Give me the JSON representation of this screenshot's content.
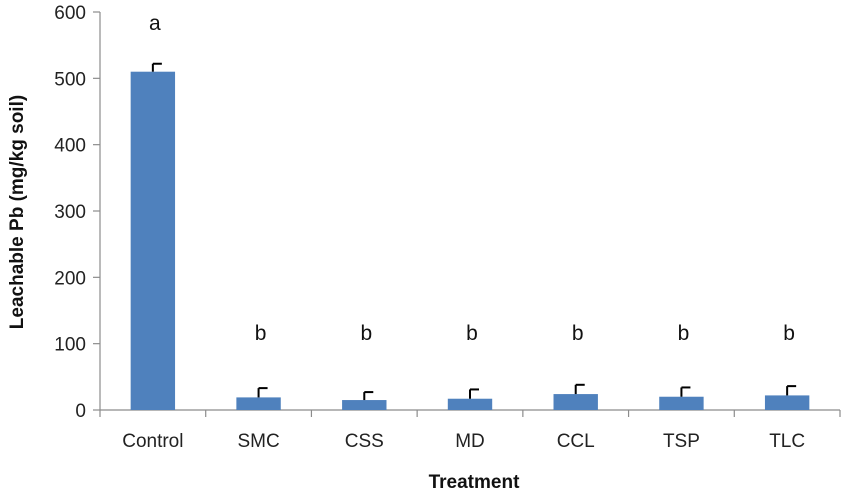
{
  "chart_data": {
    "type": "bar",
    "title": "",
    "xlabel": "Treatment",
    "ylabel": "Leachable Pb (mg/kg soil)",
    "ylim": [
      0,
      600
    ],
    "yticks": [
      0,
      100,
      200,
      300,
      400,
      500,
      600
    ],
    "grid": false,
    "legend": "none",
    "categories": [
      "Control",
      "SMC",
      "CSS",
      "MD",
      "CCL",
      "TSP",
      "TLC"
    ],
    "values": [
      510,
      19,
      15,
      17,
      24,
      20,
      22
    ],
    "error_upper": [
      12,
      14,
      12,
      14,
      14,
      14,
      14
    ],
    "significance_letters": [
      "a",
      "b",
      "b",
      "b",
      "b",
      "b",
      "b"
    ],
    "bar_color": "#4F81BD"
  }
}
